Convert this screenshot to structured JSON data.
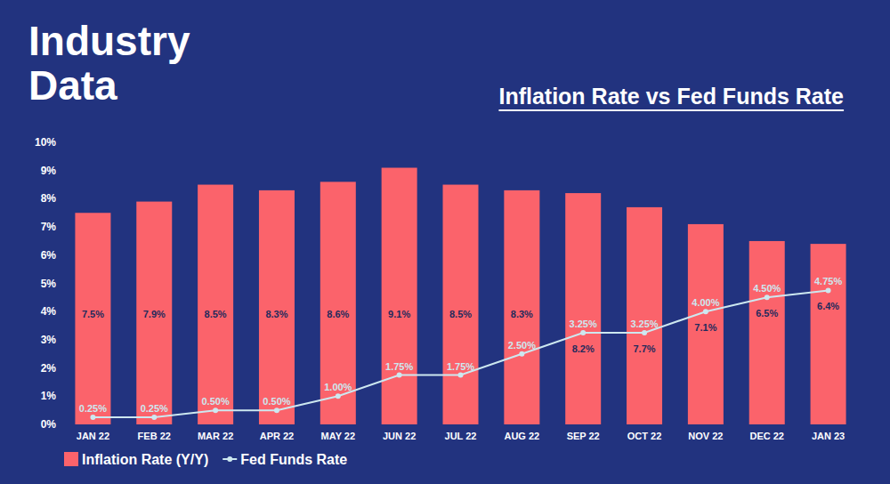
{
  "chart_data": {
    "type": "bar",
    "title": "Industry Data",
    "subtitle": "Inflation Rate vs Fed Funds Rate",
    "categories": [
      "JAN 22",
      "FEB 22",
      "MAR 22",
      "APR 22",
      "MAY 22",
      "JUN 22",
      "JUL 22",
      "AUG 22",
      "SEP 22",
      "OCT 22",
      "NOV 22",
      "DEC 22",
      "JAN 23"
    ],
    "series": [
      {
        "name": "Inflation Rate (Y/Y)",
        "type": "bar",
        "color": "#fb636b",
        "values": [
          7.5,
          7.9,
          8.5,
          8.3,
          8.6,
          9.1,
          8.5,
          8.3,
          8.2,
          7.7,
          7.1,
          6.5,
          6.4
        ],
        "value_labels": [
          "7.5%",
          "7.9%",
          "8.5%",
          "8.3%",
          "8.6%",
          "9.1%",
          "8.5%",
          "8.3%",
          "8.2%",
          "7.7%",
          "7.1%",
          "6.5%",
          "6.4%"
        ]
      },
      {
        "name": "Fed Funds Rate",
        "type": "line",
        "color": "#cde8f0",
        "marker": "circle",
        "line_style": "solid",
        "values": [
          0.25,
          0.25,
          0.5,
          0.5,
          1,
          1.75,
          1.75,
          2.5,
          3.25,
          3.25,
          4,
          4.5,
          4.75
        ],
        "value_labels": [
          "0.25%",
          "0.25%",
          "0.50%",
          "0.50%",
          "1.00%",
          "1.75%",
          "1.75%",
          "2.50%",
          "3.25%",
          "3.25%",
          "4.00%",
          "4.50%",
          "4.75%"
        ]
      }
    ],
    "ylim": [
      0,
      10
    ],
    "yticks": [
      {
        "value": 0,
        "label": "0%"
      },
      {
        "value": 1,
        "label": "1%"
      },
      {
        "value": 2,
        "label": "2%"
      },
      {
        "value": 3,
        "label": "3%"
      },
      {
        "value": 4,
        "label": "4%"
      },
      {
        "value": 5,
        "label": "5%"
      },
      {
        "value": 6,
        "label": "6%"
      },
      {
        "value": 7,
        "label": "7%"
      },
      {
        "value": 8,
        "label": "8%"
      },
      {
        "value": 9,
        "label": "9%"
      },
      {
        "value": 10,
        "label": "10%"
      }
    ],
    "grid": false,
    "data_labels": true,
    "legend": "lower left"
  }
}
